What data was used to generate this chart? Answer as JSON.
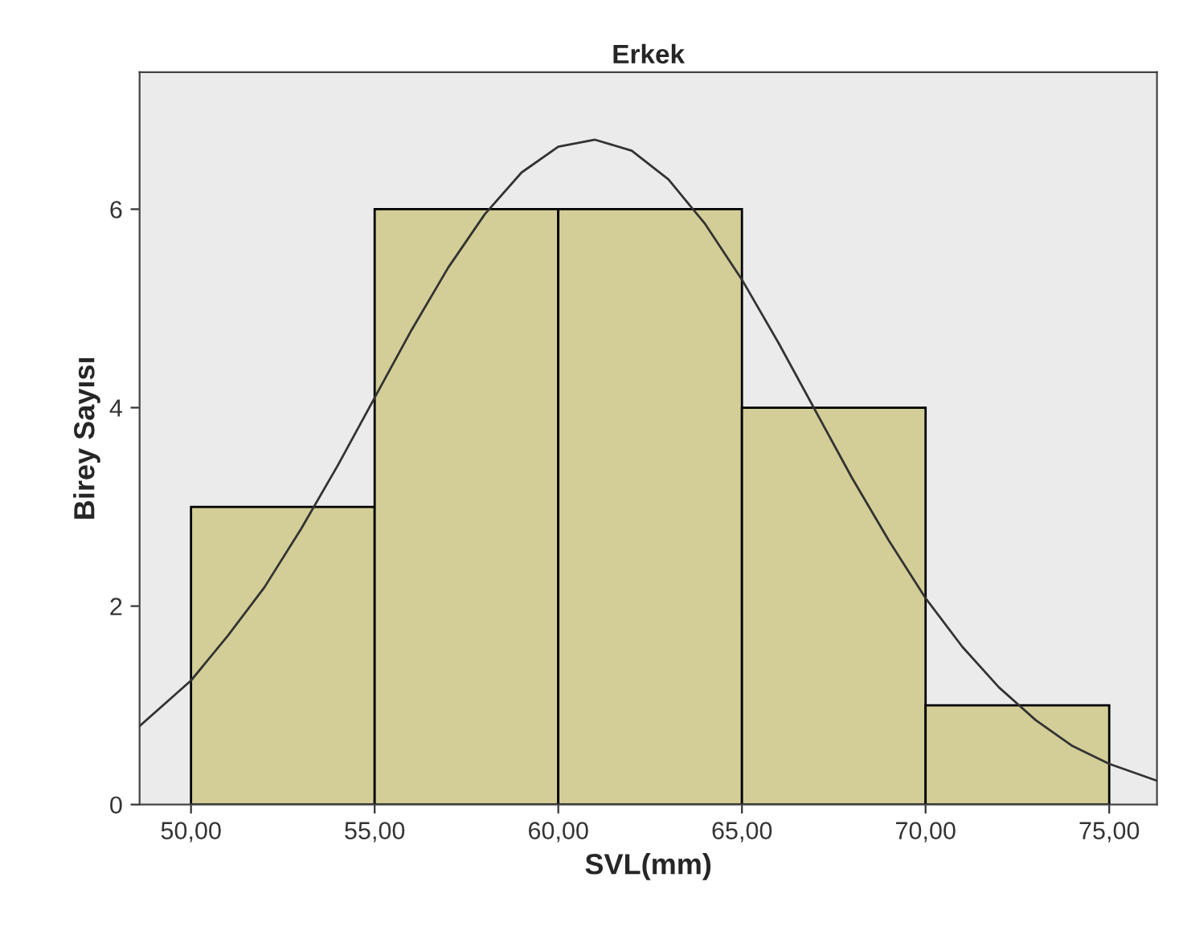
{
  "chart_data": {
    "type": "histogram",
    "title": "Erkek",
    "xlabel": "SVL(mm)",
    "ylabel": "Birey Sayısı",
    "xlim": [
      48.6,
      76.3
    ],
    "ylim": [
      0,
      7.38
    ],
    "xticks": [
      {
        "value": 50,
        "label": "50,00"
      },
      {
        "value": 55,
        "label": "55,00"
      },
      {
        "value": 60,
        "label": "60,00"
      },
      {
        "value": 65,
        "label": "65,00"
      },
      {
        "value": 70,
        "label": "70,00"
      },
      {
        "value": 75,
        "label": "75,00"
      }
    ],
    "yticks": [
      0,
      2,
      4,
      6
    ],
    "grid": false,
    "legend": false,
    "series": [
      {
        "color": "#d3ce97",
        "bins": [
          50,
          55,
          60,
          65,
          70,
          75
        ],
        "values": [
          3,
          6,
          6,
          4,
          1
        ]
      },
      {
        "type": "line",
        "color": "#333333",
        "x": [
          48.6,
          50,
          51,
          52,
          53,
          54,
          55,
          56,
          57,
          58,
          59,
          60,
          61,
          62,
          63,
          64,
          65,
          66,
          67,
          68,
          69,
          70,
          71,
          72,
          73,
          74,
          75,
          76.3
        ],
        "values": [
          0.79,
          1.25,
          1.7,
          2.19,
          2.78,
          3.42,
          4.1,
          4.78,
          5.41,
          5.95,
          6.37,
          6.63,
          6.7,
          6.59,
          6.3,
          5.85,
          5.29,
          4.65,
          3.97,
          3.29,
          2.66,
          2.08,
          1.59,
          1.18,
          0.85,
          0.59,
          0.41,
          0.24
        ]
      }
    ]
  }
}
